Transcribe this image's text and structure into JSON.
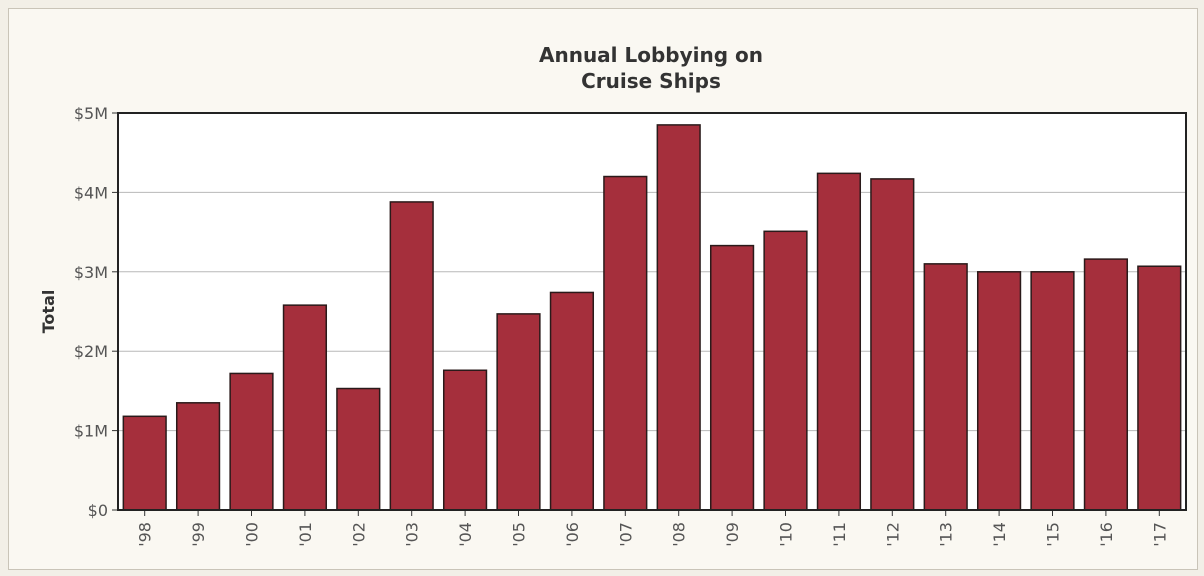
{
  "chart_data": {
    "type": "bar",
    "title_lines": [
      "Annual Lobbying on",
      "Cruise Ships"
    ],
    "xlabel": "",
    "ylabel": "Total",
    "categories": [
      "'98",
      "'99",
      "'00",
      "'01",
      "'02",
      "'03",
      "'04",
      "'05",
      "'06",
      "'07",
      "'08",
      "'09",
      "'10",
      "'11",
      "'12",
      "'13",
      "'14",
      "'15",
      "'16",
      "'17"
    ],
    "values": [
      1.18,
      1.35,
      1.72,
      2.58,
      1.53,
      3.88,
      1.76,
      2.47,
      2.74,
      4.2,
      4.85,
      3.33,
      3.51,
      4.24,
      4.17,
      3.1,
      3.0,
      3.0,
      3.16,
      3.07
    ],
    "value_unit": "millions of dollars",
    "ylim": [
      0,
      5
    ],
    "yticks": [
      0,
      1,
      2,
      3,
      4,
      5
    ],
    "ytick_labels": [
      "$0",
      "$1M",
      "$2M",
      "$3M",
      "$4M",
      "$5M"
    ],
    "grid": true,
    "bar_color": "#a52f3c",
    "bar_border_color": "#2a1a1a"
  }
}
